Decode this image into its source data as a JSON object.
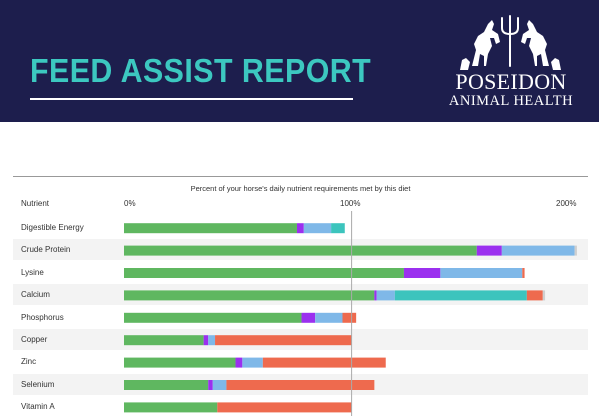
{
  "header": {
    "title": "FEED ASSIST REPORT",
    "brand_name": "POSEIDON",
    "brand_sub": "ANIMAL HEALTH",
    "logo_icon": "horses-trident-logo",
    "background_color": "#1d1e4d",
    "title_color": "#3cc8c0"
  },
  "chart_data": {
    "type": "bar",
    "orientation": "horizontal",
    "stacked": true,
    "title": "Percent of your horse's daily nutrient requirements met by this diet",
    "column_header": "Nutrient",
    "x_ticks": [
      "0%",
      "100%",
      "200%"
    ],
    "xlim": [
      0,
      200
    ],
    "reference_line": 100,
    "grid": false,
    "legend": "none",
    "categories": [
      "Digestible Energy",
      "Crude Protein",
      "Lysine",
      "Calcium",
      "Phosphorus",
      "Copper",
      "Zinc",
      "Selenium",
      "Vitamin A"
    ],
    "series": [
      {
        "color": "#5fb760",
        "values": [
          76,
          155,
          123,
          110,
          78,
          35,
          49,
          37,
          41
        ]
      },
      {
        "color": "#9b30ef",
        "values": [
          3,
          11,
          16,
          1,
          6,
          2,
          3,
          2,
          0
        ]
      },
      {
        "color": "#7fb8e8",
        "values": [
          12,
          32,
          36,
          8,
          12,
          3,
          9,
          6,
          0
        ]
      },
      {
        "color": "#3cc4bd",
        "values": [
          6,
          0,
          0,
          58,
          0,
          0,
          0,
          0,
          0
        ]
      },
      {
        "color": "#ee6a4e",
        "values": [
          0,
          0,
          1,
          7,
          6,
          60,
          54,
          65,
          59
        ]
      },
      {
        "color": "#cfcfcf",
        "values": [
          0,
          1,
          0,
          1,
          0,
          0,
          0,
          0,
          0
        ]
      }
    ]
  }
}
